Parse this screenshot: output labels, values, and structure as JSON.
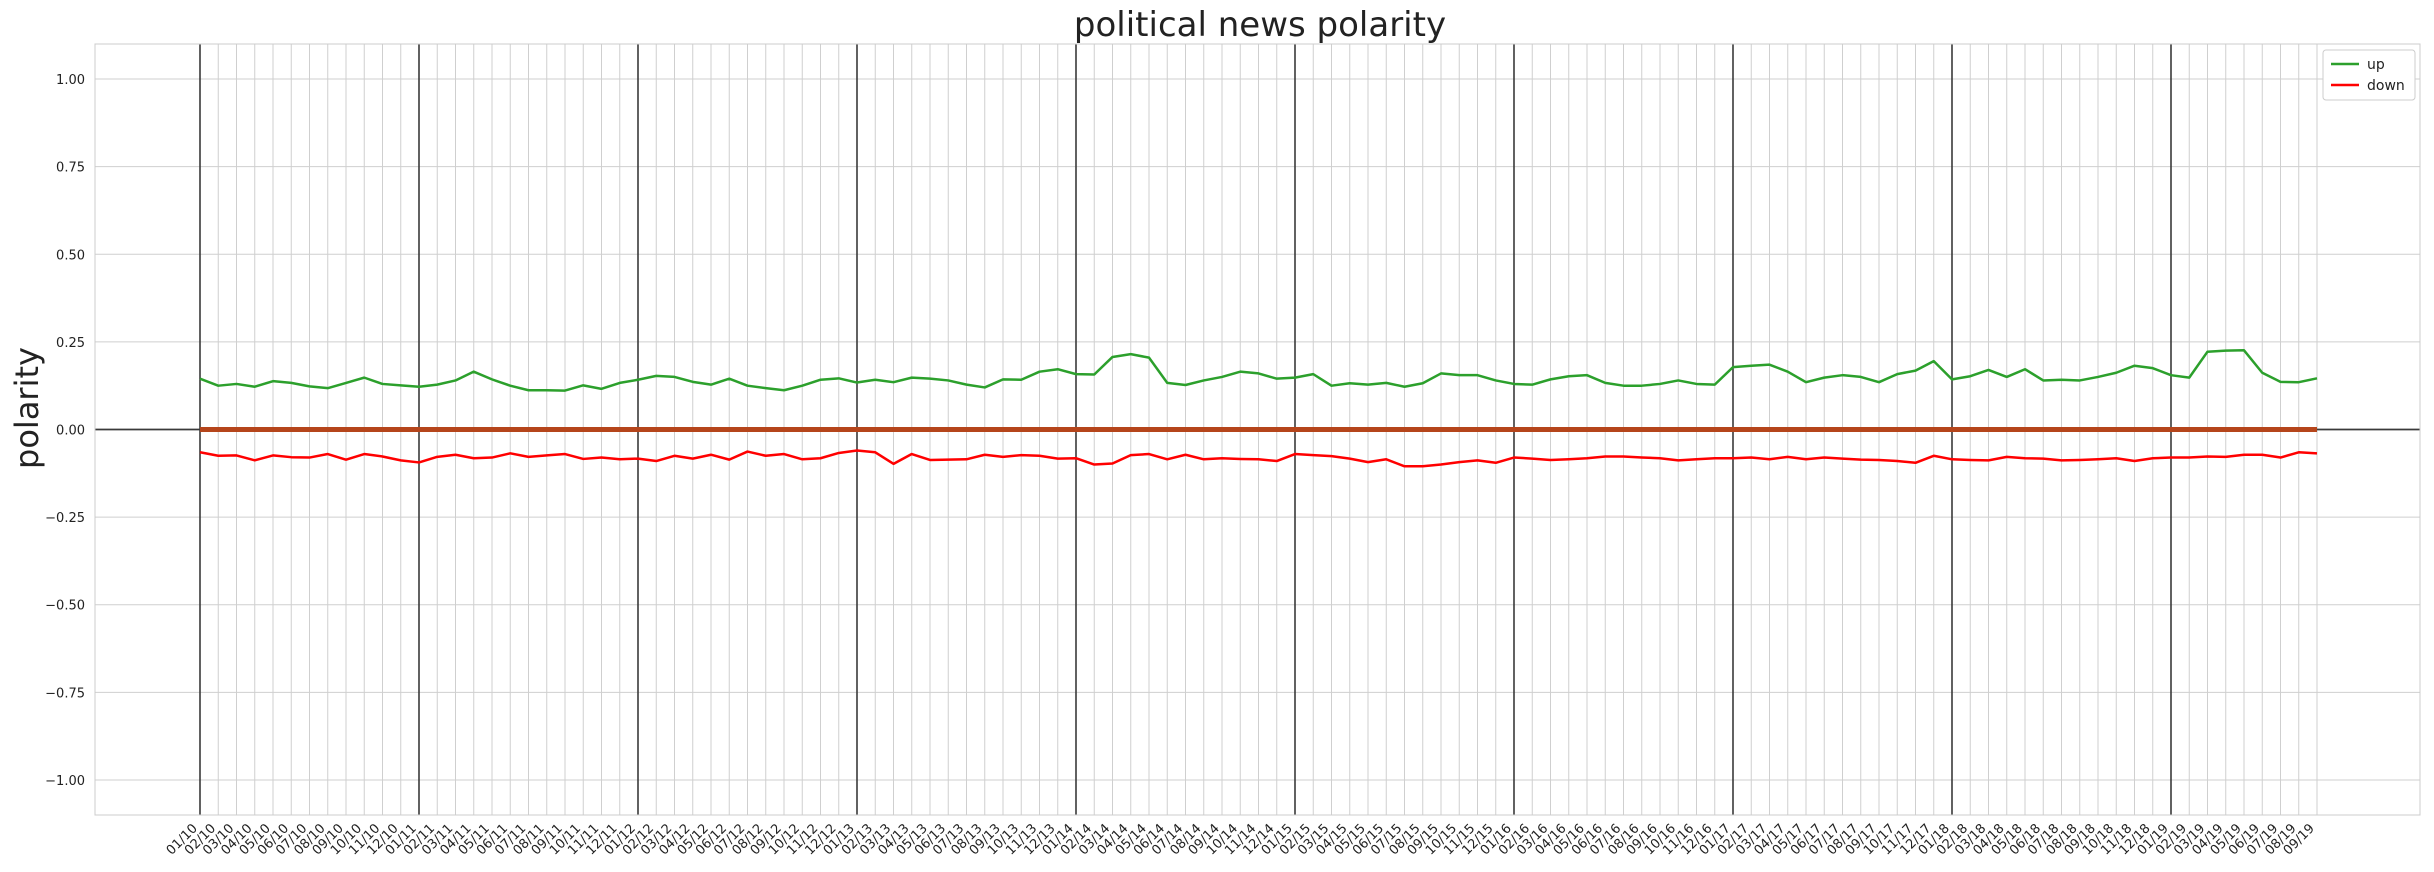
{
  "chart_data": {
    "type": "line",
    "title": "political news polarity",
    "xlabel": "",
    "ylabel": "polarity",
    "ylim": [
      -1.1,
      1.1
    ],
    "yticks": [
      1.0,
      0.75,
      0.5,
      0.25,
      0.0,
      -0.25,
      -0.5,
      -0.75,
      -1.0
    ],
    "ytick_labels": [
      "1.00",
      "0.75",
      "0.50",
      "0.25",
      "0.00",
      "−0.25",
      "−0.50",
      "−0.75",
      "−1.00"
    ],
    "grid": true,
    "legend_position": "top-right",
    "year_markers": [
      "01/10",
      "01/11",
      "01/12",
      "01/13",
      "01/14",
      "01/15",
      "01/16",
      "01/17",
      "01/18",
      "01/19"
    ],
    "x": [
      "01/10",
      "02/10",
      "03/10",
      "04/10",
      "05/10",
      "06/10",
      "07/10",
      "08/10",
      "09/10",
      "10/10",
      "11/10",
      "12/10",
      "01/11",
      "02/11",
      "03/11",
      "04/11",
      "05/11",
      "06/11",
      "07/11",
      "08/11",
      "09/11",
      "10/11",
      "11/11",
      "12/11",
      "01/12",
      "02/12",
      "03/12",
      "04/12",
      "05/12",
      "06/12",
      "07/12",
      "08/12",
      "09/12",
      "10/12",
      "11/12",
      "12/12",
      "01/13",
      "02/13",
      "03/13",
      "04/13",
      "05/13",
      "06/13",
      "07/13",
      "08/13",
      "09/13",
      "10/13",
      "11/13",
      "12/13",
      "01/14",
      "02/14",
      "03/14",
      "04/14",
      "05/14",
      "06/14",
      "07/14",
      "08/14",
      "09/14",
      "10/14",
      "11/14",
      "12/14",
      "01/15",
      "02/15",
      "03/15",
      "04/15",
      "05/15",
      "06/15",
      "07/15",
      "08/15",
      "09/15",
      "10/15",
      "11/15",
      "12/15",
      "01/16",
      "02/16",
      "03/16",
      "04/16",
      "05/16",
      "06/16",
      "07/16",
      "08/16",
      "09/16",
      "10/16",
      "11/16",
      "12/16",
      "01/17",
      "02/17",
      "03/17",
      "04/17",
      "05/17",
      "06/17",
      "07/17",
      "08/17",
      "09/17",
      "10/17",
      "11/17",
      "12/17",
      "01/18",
      "02/18",
      "03/18",
      "04/18",
      "05/18",
      "06/18",
      "07/18",
      "08/18",
      "09/18",
      "10/18",
      "11/18",
      "12/18",
      "01/19",
      "02/19",
      "03/19",
      "04/19",
      "05/19",
      "06/19",
      "07/19",
      "08/19",
      "09/19"
    ],
    "series": [
      {
        "name": "up",
        "color": "#2ca02c",
        "values": [
          0.145,
          0.125,
          0.13,
          0.122,
          0.138,
          0.133,
          0.123,
          0.118,
          0.133,
          0.148,
          0.13,
          0.126,
          0.122,
          0.128,
          0.14,
          0.165,
          0.143,
          0.125,
          0.112,
          0.112,
          0.111,
          0.126,
          0.116,
          0.133,
          0.142,
          0.153,
          0.15,
          0.136,
          0.128,
          0.145,
          0.125,
          0.118,
          0.112,
          0.125,
          0.142,
          0.146,
          0.134,
          0.142,
          0.135,
          0.148,
          0.145,
          0.14,
          0.128,
          0.12,
          0.143,
          0.142,
          0.165,
          0.172,
          0.158,
          0.157,
          0.207,
          0.215,
          0.205,
          0.133,
          0.127,
          0.14,
          0.15,
          0.165,
          0.16,
          0.145,
          0.148,
          0.158,
          0.125,
          0.132,
          0.128,
          0.133,
          0.122,
          0.132,
          0.16,
          0.155,
          0.155,
          0.14,
          0.13,
          0.128,
          0.143,
          0.152,
          0.155,
          0.133,
          0.125,
          0.125,
          0.13,
          0.14,
          0.13,
          0.128,
          0.178,
          0.182,
          0.185,
          0.165,
          0.135,
          0.148,
          0.155,
          0.15,
          0.135,
          0.158,
          0.168,
          0.195,
          0.143,
          0.152,
          0.17,
          0.15,
          0.172,
          0.14,
          0.142,
          0.14,
          0.15,
          0.162,
          0.182,
          0.175,
          0.155,
          0.148,
          0.222,
          0.225,
          0.226,
          0.162,
          0.136,
          0.135,
          0.146
        ]
      },
      {
        "name": "down",
        "color": "#ff0000",
        "values": [
          -0.065,
          -0.075,
          -0.074,
          -0.088,
          -0.074,
          -0.079,
          -0.08,
          -0.07,
          -0.086,
          -0.07,
          -0.077,
          -0.088,
          -0.094,
          -0.078,
          -0.072,
          -0.082,
          -0.08,
          -0.068,
          -0.078,
          -0.074,
          -0.07,
          -0.084,
          -0.08,
          -0.085,
          -0.083,
          -0.09,
          -0.075,
          -0.083,
          -0.072,
          -0.086,
          -0.063,
          -0.075,
          -0.07,
          -0.085,
          -0.082,
          -0.067,
          -0.06,
          -0.065,
          -0.098,
          -0.07,
          -0.087,
          -0.086,
          -0.085,
          -0.072,
          -0.078,
          -0.073,
          -0.075,
          -0.083,
          -0.082,
          -0.1,
          -0.097,
          -0.073,
          -0.07,
          -0.085,
          -0.072,
          -0.085,
          -0.082,
          -0.084,
          -0.085,
          -0.09,
          -0.07,
          -0.073,
          -0.076,
          -0.083,
          -0.093,
          -0.085,
          -0.105,
          -0.105,
          -0.1,
          -0.093,
          -0.088,
          -0.095,
          -0.08,
          -0.083,
          -0.087,
          -0.085,
          -0.082,
          -0.077,
          -0.077,
          -0.08,
          -0.082,
          -0.088,
          -0.085,
          -0.082,
          -0.082,
          -0.08,
          -0.085,
          -0.078,
          -0.085,
          -0.08,
          -0.083,
          -0.086,
          -0.087,
          -0.09,
          -0.095,
          -0.075,
          -0.085,
          -0.087,
          -0.088,
          -0.078,
          -0.082,
          -0.083,
          -0.088,
          -0.087,
          -0.085,
          -0.082,
          -0.09,
          -0.082,
          -0.08,
          -0.08,
          -0.077,
          -0.078,
          -0.072,
          -0.072,
          -0.08,
          -0.065,
          -0.068
        ]
      },
      {
        "color": "#b5451b",
        "values": [
          0,
          0,
          0,
          0,
          0,
          0,
          0,
          0,
          0,
          0,
          0,
          0,
          0,
          0,
          0,
          0,
          0,
          0,
          0,
          0,
          0,
          0,
          0,
          0,
          0,
          0,
          0,
          0,
          0,
          0,
          0,
          0,
          0,
          0,
          0,
          0,
          0,
          0,
          0,
          0,
          0,
          0,
          0,
          0,
          0,
          0,
          0,
          0,
          0,
          0,
          0,
          0,
          0,
          0,
          0,
          0,
          0,
          0,
          0,
          0,
          0,
          0,
          0,
          0,
          0,
          0,
          0,
          0,
          0,
          0,
          0,
          0,
          0,
          0,
          0,
          0,
          0,
          0,
          0,
          0,
          0,
          0,
          0,
          0,
          0,
          0,
          0,
          0,
          0,
          0,
          0,
          0,
          0,
          0,
          0,
          0,
          0,
          0,
          0,
          0,
          0,
          0,
          0,
          0,
          0,
          0,
          0,
          0,
          0,
          0,
          0,
          0,
          0,
          0,
          0,
          0,
          0
        ]
      }
    ],
    "legend": [
      {
        "label": "up",
        "color": "#2ca02c"
      },
      {
        "label": "down",
        "color": "#ff0000"
      }
    ],
    "axis_color": "#3a3a3a"
  }
}
